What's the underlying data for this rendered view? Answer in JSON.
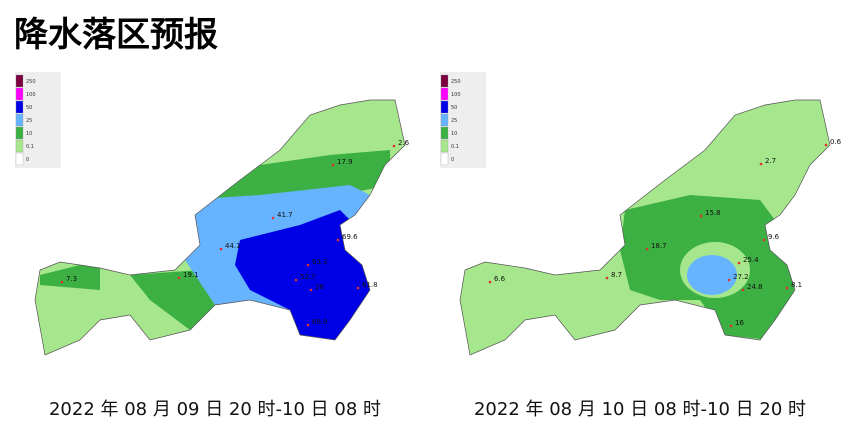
{
  "title": "降水落区预报",
  "legend": [
    {
      "label": "250",
      "color": "#7a0040"
    },
    {
      "label": "100",
      "color": "#ff00ff"
    },
    {
      "label": "50",
      "color": "#0000e6"
    },
    {
      "label": "25",
      "color": "#66b3ff"
    },
    {
      "label": "10",
      "color": "#3cb043"
    },
    {
      "label": "0.1",
      "color": "#a6e68c"
    },
    {
      "label": "0",
      "color": "#ffffff"
    }
  ],
  "maps": [
    {
      "caption": "2022 年 08 月 09 日 20 时-10 日 08 时",
      "stations": [
        "2.6",
        "17.9",
        "41.7",
        "69.6",
        "44.1",
        "63.3",
        "52.7",
        "38",
        "61.8",
        "7.3",
        "19.1",
        "68.9"
      ]
    },
    {
      "caption": "2022 年 08 月 10 日 08 时-10 日 20 时",
      "stations": [
        "0.6",
        "2.7",
        "15.8",
        "9.6",
        "18.7",
        "25.4",
        "6.6",
        "8.7",
        "27.2",
        "24.8",
        "8.1",
        "16"
      ]
    }
  ]
}
